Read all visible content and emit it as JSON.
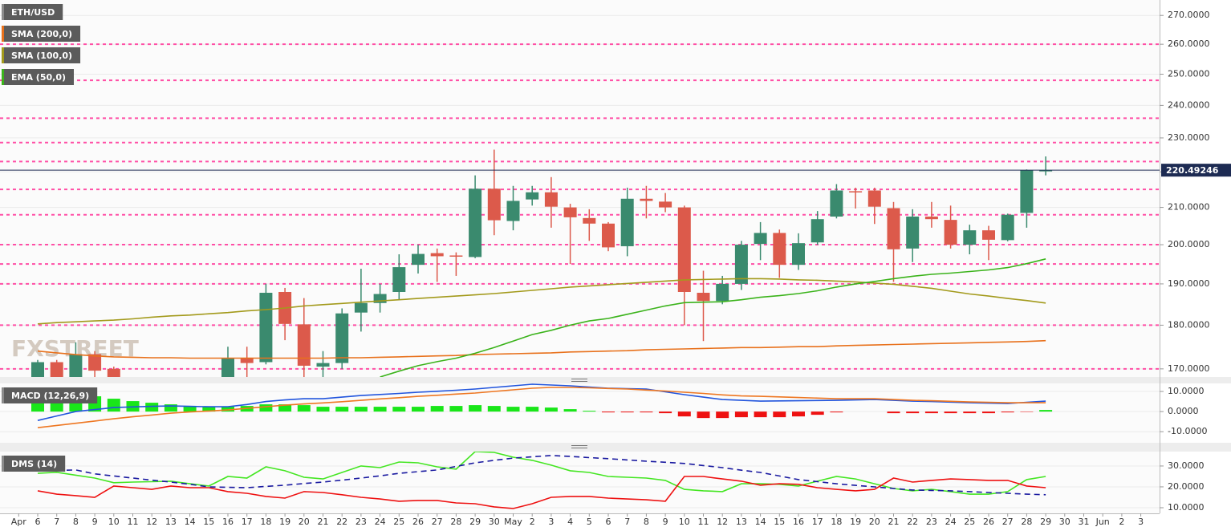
{
  "chart_data": [
    {
      "type": "candlestick",
      "symbol": "ETH/USD",
      "log": true,
      "grid": true,
      "watermark": "FXSTREET",
      "categories": [
        "Apr",
        "6",
        "7",
        "8",
        "9",
        "10",
        "11",
        "12",
        "13",
        "14",
        "15",
        "16",
        "17",
        "18",
        "19",
        "20",
        "21",
        "22",
        "23",
        "24",
        "25",
        "26",
        "27",
        "28",
        "29",
        "30",
        "May",
        "2",
        "3",
        "4",
        "5",
        "6",
        "7",
        "8",
        "9",
        "10",
        "11",
        "12",
        "13",
        "14",
        "15",
        "16",
        "17",
        "18",
        "19",
        "20",
        "21",
        "22",
        "23",
        "24",
        "25",
        "26",
        "27",
        "28",
        "29",
        "30",
        "31",
        "Jun",
        "2",
        "3"
      ],
      "open": [
        null,
        166,
        171.5,
        168,
        173.3,
        170,
        null,
        null,
        null,
        null,
        null,
        167,
        172.5,
        171.5,
        188,
        180.2,
        170.5,
        171.3,
        183,
        185.3,
        188,
        194.8,
        197.8,
        197.2,
        196.8,
        215.2,
        206.3,
        212.2,
        214.2,
        210,
        207.1,
        205.6,
        199.6,
        212.4,
        211.6,
        210,
        187.8,
        185.8,
        190,
        200.2,
        203.1,
        194.8,
        200.6,
        207.5,
        214.5,
        214.7,
        209.8,
        199,
        207.5,
        206.6,
        200,
        203.8,
        201.2,
        208.5,
        220.4,
        null,
        null,
        null,
        null,
        null
      ],
      "high": [
        null,
        172,
        172,
        176,
        174,
        170.5,
        null,
        null,
        null,
        null,
        null,
        175,
        175,
        190,
        189,
        186.5,
        174,
        184,
        193.8,
        190,
        197.5,
        200,
        199,
        198,
        219,
        226.5,
        216,
        216,
        218.5,
        211,
        209.5,
        206,
        215.5,
        216,
        214,
        210.5,
        193.3,
        192,
        201,
        206,
        204,
        203,
        209,
        216.5,
        215.5,
        215.5,
        211.5,
        209.5,
        211.5,
        210.5,
        205.3,
        205,
        208.3,
        220.7,
        224.5,
        null,
        null,
        null,
        null,
        null
      ],
      "low": [
        null,
        164,
        164,
        165,
        168,
        165,
        null,
        null,
        null,
        null,
        null,
        164,
        168,
        171,
        176.5,
        168,
        168,
        170,
        178.5,
        183,
        186,
        192.6,
        190.5,
        192,
        196.5,
        202.5,
        203.8,
        210.5,
        204.5,
        195,
        201,
        198.3,
        197,
        207,
        208.7,
        180,
        176.3,
        185,
        188.5,
        196,
        191.5,
        193.5,
        200,
        207,
        209.7,
        205.5,
        190.5,
        195.5,
        204.5,
        199,
        197.5,
        196,
        200.9,
        204.5,
        219,
        null,
        null,
        null,
        null,
        null
      ],
      "close": [
        null,
        171.5,
        166,
        173.3,
        169.6,
        167,
        null,
        null,
        null,
        null,
        null,
        172.3,
        171.3,
        187.8,
        180.3,
        170.7,
        171.3,
        182.8,
        185.3,
        187.5,
        194.2,
        197.6,
        197,
        197,
        215.2,
        206.5,
        211.8,
        214.2,
        210.2,
        207.3,
        205.6,
        199.3,
        212.4,
        211.8,
        210,
        188,
        185.8,
        190,
        200,
        203.1,
        194.8,
        200.4,
        206.8,
        214.7,
        214.3,
        210.2,
        198.8,
        207.5,
        206.8,
        200,
        203.8,
        201.3,
        208,
        220.5,
        220.49246,
        null,
        null,
        null,
        null,
        null
      ],
      "up_color": "#3a8a6e",
      "down_color": "#dc5a4b",
      "last_price": 220.49246,
      "last_price_color": "#1d2b53",
      "levels": [
        260,
        248,
        236,
        228.6,
        223,
        215,
        208,
        200,
        195,
        190,
        180,
        170
      ],
      "level_color": "#ff4fa6",
      "series": [
        {
          "name": "SMA (200,0)",
          "color": "#e8711c",
          "values": [
            null,
            174.0,
            173.6,
            173.2,
            172.9,
            172.7,
            172.6,
            172.5,
            172.5,
            172.4,
            172.4,
            172.4,
            172.4,
            172.4,
            172.4,
            172.4,
            172.4,
            172.5,
            172.5,
            172.6,
            172.7,
            172.8,
            172.9,
            173.0,
            173.2,
            173.3,
            173.4,
            173.5,
            173.6,
            173.8,
            173.9,
            174.0,
            174.1,
            174.3,
            174.4,
            174.5,
            174.6,
            174.7,
            174.8,
            174.8,
            174.9,
            175.0,
            175.0,
            175.2,
            175.3,
            175.4,
            175.5,
            175.6,
            175.7,
            175.8,
            175.9,
            176.0,
            176.1,
            176.2,
            176.4,
            null,
            null,
            null,
            null,
            null
          ]
        },
        {
          "name": "SMA (100,0)",
          "color": "#a39a1c",
          "values": [
            null,
            180.3,
            180.6,
            180.8,
            181.0,
            181.2,
            181.5,
            181.9,
            182.2,
            182.4,
            182.7,
            183.0,
            183.4,
            183.7,
            184.1,
            184.6,
            184.9,
            185.2,
            185.5,
            185.8,
            186.1,
            186.4,
            186.7,
            187.0,
            187.3,
            187.6,
            188.0,
            188.4,
            188.8,
            189.2,
            189.5,
            189.8,
            190.1,
            190.4,
            190.7,
            191.0,
            191.1,
            191.2,
            191.3,
            191.3,
            191.2,
            191.0,
            190.9,
            190.7,
            190.5,
            190.2,
            189.9,
            189.4,
            188.9,
            188.2,
            187.5,
            187.0,
            186.4,
            185.9,
            185.3,
            null,
            null,
            null,
            null,
            null
          ]
        },
        {
          "name": "EMA (50,0)",
          "color": "#3bb31b",
          "values": [
            null,
            null,
            null,
            null,
            null,
            null,
            null,
            null,
            null,
            null,
            null,
            null,
            null,
            null,
            null,
            null,
            null,
            null,
            null,
            168.2,
            169.5,
            170.7,
            171.6,
            172.4,
            173.5,
            174.8,
            176.3,
            177.8,
            178.8,
            180.0,
            181.0,
            181.6,
            182.6,
            183.6,
            184.6,
            185.4,
            185.5,
            185.6,
            186.1,
            186.7,
            187.1,
            187.6,
            188.3,
            189.2,
            190.0,
            190.6,
            191.3,
            191.9,
            192.4,
            192.7,
            193.1,
            193.5,
            194.1,
            195.1,
            196.3,
            null,
            null,
            null,
            null,
            null
          ]
        }
      ],
      "ylim": [
        168.2,
        275.5
      ],
      "yticks": [
        {
          "value": 170,
          "label": "170.0000"
        },
        {
          "value": 180,
          "label": "180.0000"
        },
        {
          "value": 190,
          "label": "190.0000"
        },
        {
          "value": 200,
          "label": "200.0000"
        },
        {
          "value": 210,
          "label": "210.0000"
        },
        {
          "value": 220,
          "label": "220.0000"
        },
        {
          "value": 230,
          "label": "230.0000"
        },
        {
          "value": 240,
          "label": "240.0000"
        },
        {
          "value": 250,
          "label": "250.0000"
        },
        {
          "value": 260,
          "label": "260.0000"
        },
        {
          "value": 270,
          "label": "270.0000"
        }
      ]
    },
    {
      "type": "bar",
      "title": "MACD (12,26,9)",
      "grid": true,
      "up_color": "#19e619",
      "down_color": "#ee1111",
      "values": [
        null,
        4.4,
        5.2,
        6.8,
        7.6,
        6.4,
        5.2,
        4.4,
        3.6,
        2.8,
        2.4,
        2.4,
        2.8,
        3.6,
        3.6,
        3.2,
        2.4,
        2.4,
        2.4,
        2.4,
        2.4,
        2.4,
        2.8,
        2.8,
        3.2,
        2.8,
        2.4,
        2.4,
        2.0,
        1.2,
        0.4,
        -0.4,
        -0.4,
        -0.4,
        -0.8,
        -2.4,
        -3.2,
        -3.2,
        -2.8,
        -2.8,
        -2.8,
        -2.4,
        -1.6,
        -0.4,
        0.0,
        0.0,
        -0.8,
        -0.8,
        -0.8,
        -0.8,
        -0.8,
        -0.8,
        -0.4,
        -0.2,
        0.8,
        null,
        null,
        null,
        null,
        null
      ],
      "series": [
        {
          "color": "#2255dd",
          "values": [
            null,
            -4.4,
            -2.2,
            0.0,
            1.0,
            2.0,
            2.3,
            2.6,
            2.8,
            2.6,
            2.4,
            2.4,
            3.5,
            5.0,
            5.8,
            6.4,
            6.4,
            7.2,
            8.0,
            8.5,
            9.0,
            9.6,
            10.1,
            10.6,
            11.2,
            12.0,
            12.8,
            13.6,
            13.2,
            12.8,
            12.2,
            11.6,
            11.4,
            11.2,
            9.8,
            8.4,
            7.2,
            6.0,
            5.6,
            5.2,
            5.3,
            5.4,
            5.5,
            5.6,
            5.8,
            6.0,
            5.6,
            5.2,
            5.0,
            4.7,
            4.4,
            4.2,
            4.0,
            4.6,
            5.2,
            null,
            null,
            null,
            null,
            null
          ]
        },
        {
          "color": "#ee7722",
          "values": [
            null,
            -8.0,
            -6.9,
            -5.8,
            -4.7,
            -3.6,
            -2.6,
            -1.7,
            -0.8,
            -0.2,
            0.3,
            0.8,
            1.6,
            2.4,
            3.2,
            3.8,
            4.3,
            4.9,
            5.6,
            6.3,
            6.9,
            7.6,
            8.1,
            8.7,
            9.2,
            10.0,
            10.8,
            11.6,
            12.0,
            12.0,
            11.8,
            11.5,
            11.2,
            10.7,
            10.2,
            9.6,
            9.0,
            8.3,
            7.8,
            7.6,
            7.3,
            7.0,
            6.7,
            6.4,
            6.4,
            6.4,
            6.0,
            5.6,
            5.4,
            5.1,
            4.8,
            4.6,
            4.4,
            4.4,
            4.4,
            null,
            null,
            null,
            null,
            null
          ]
        }
      ],
      "ylim": [
        -15.5,
        14
      ],
      "yticks": [
        {
          "value": -10,
          "label": "-10.0000"
        },
        {
          "value": 0,
          "label": "0.0000"
        },
        {
          "value": 10,
          "label": "10.0000"
        }
      ]
    },
    {
      "type": "line",
      "title": "DMS (14)",
      "grid": true,
      "series": [
        {
          "color": "#44e622",
          "values": [
            null,
            26.5,
            27,
            25.6,
            24.2,
            22,
            22.3,
            22.5,
            22.7,
            21.5,
            20.4,
            25,
            24.2,
            29.6,
            27.7,
            24.6,
            23.8,
            26.9,
            30,
            29.2,
            31.9,
            31.5,
            29.6,
            28.5,
            36.9,
            36.5,
            34.2,
            32.7,
            30.4,
            27.7,
            26.9,
            25,
            24.6,
            24.2,
            23.1,
            18.8,
            18.1,
            17.7,
            21.5,
            21.5,
            21.2,
            20.4,
            22.7,
            25,
            23.8,
            21.5,
            19.2,
            18.1,
            18.8,
            17.7,
            16.5,
            16.5,
            17.7,
            23.5,
            25,
            null,
            null,
            null,
            null,
            null
          ]
        },
        {
          "color": "#ee1111",
          "values": [
            null,
            18.1,
            16.5,
            15.8,
            15,
            20.4,
            19.6,
            18.8,
            20.4,
            19.6,
            19.6,
            17.7,
            16.9,
            15.4,
            14.6,
            17.7,
            17.3,
            16.2,
            15,
            14.2,
            13.1,
            13.5,
            13.5,
            12.3,
            11.9,
            10.4,
            9.6,
            11.9,
            15,
            15.4,
            15.4,
            14.6,
            14.2,
            13.8,
            13.1,
            25,
            25,
            23.8,
            22.7,
            20.8,
            21.5,
            21.2,
            19.6,
            18.8,
            18.1,
            18.8,
            24.2,
            22.3,
            23.1,
            23.8,
            23.5,
            23.1,
            23.1,
            20.4,
            19.6,
            null,
            null,
            null,
            null,
            null
          ]
        },
        {
          "color": "#1a1aa0",
          "dashed": true,
          "values": [
            null,
            27.7,
            27.9,
            28.1,
            26.2,
            25.2,
            24.2,
            23.2,
            22.3,
            21.2,
            20.0,
            19.8,
            19.6,
            20.2,
            20.8,
            21.6,
            22.3,
            23.2,
            24.2,
            25.3,
            26.5,
            27.3,
            28.1,
            29.8,
            31.5,
            32.7,
            33.8,
            34.4,
            35.0,
            34.6,
            34.0,
            33.5,
            32.9,
            32.3,
            31.8,
            31.2,
            30.2,
            29.2,
            28.0,
            26.9,
            25.2,
            23.5,
            22.5,
            21.5,
            20.7,
            20.0,
            19.2,
            18.5,
            18.3,
            18.1,
            17.7,
            17.3,
            16.9,
            16.5,
            16.2,
            null,
            null,
            null,
            null,
            null
          ]
        }
      ],
      "ylim": [
        7.3,
        36.9
      ],
      "yticks": [
        {
          "value": 10,
          "label": "10.0000"
        },
        {
          "value": 20,
          "label": "20.0000"
        },
        {
          "value": 30,
          "label": "30.0000"
        }
      ]
    }
  ]
}
